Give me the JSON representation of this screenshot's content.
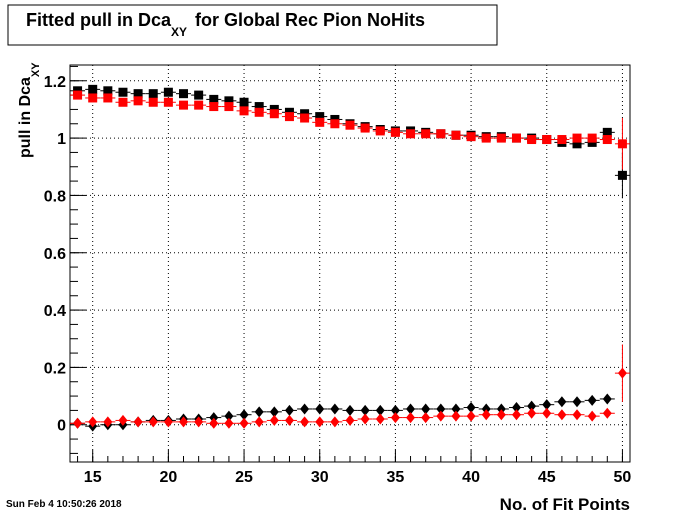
{
  "chart_data": {
    "type": "scatter",
    "title": "Fitted pull in Dca",
    "title_subscript": "XY",
    "title_suffix": "for Global Rec Pion NoHits",
    "y_label": "pull in Dca",
    "y_label_subscript": "XY",
    "x_label": "No. of Fit Points",
    "timestamp": "Sun Feb  4 10:50:26 2018",
    "x": [
      14,
      15,
      16,
      17,
      18,
      19,
      20,
      21,
      22,
      23,
      24,
      25,
      26,
      27,
      28,
      29,
      30,
      31,
      32,
      33,
      34,
      35,
      36,
      37,
      38,
      39,
      40,
      41,
      42,
      43,
      44,
      45,
      46,
      47,
      48,
      49,
      50
    ],
    "series": [
      {
        "color": "#000000",
        "marker": "square",
        "values": [
          1.165,
          1.17,
          1.165,
          1.16,
          1.155,
          1.155,
          1.16,
          1.155,
          1.15,
          1.135,
          1.13,
          1.125,
          1.11,
          1.1,
          1.09,
          1.085,
          1.075,
          1.065,
          1.05,
          1.04,
          1.03,
          1.025,
          1.025,
          1.02,
          1.015,
          1.01,
          1.01,
          1.005,
          1.005,
          1.0,
          1.0,
          0.995,
          0.985,
          0.98,
          0.985,
          1.02,
          0.87
        ],
        "errors": [
          0.01,
          0.01,
          0.01,
          0.01,
          0.01,
          0.01,
          0.01,
          0.01,
          0.01,
          0.01,
          0.01,
          0.01,
          0.01,
          0.01,
          0.01,
          0.01,
          0.01,
          0.01,
          0.01,
          0.01,
          0.01,
          0.01,
          0.01,
          0.01,
          0.01,
          0.01,
          0.01,
          0.01,
          0.01,
          0.01,
          0.01,
          0.01,
          0.01,
          0.01,
          0.01,
          0.015,
          0.08
        ]
      },
      {
        "color": "#ff0000",
        "marker": "square",
        "values": [
          1.15,
          1.14,
          1.14,
          1.125,
          1.13,
          1.125,
          1.125,
          1.115,
          1.115,
          1.11,
          1.11,
          1.095,
          1.09,
          1.085,
          1.075,
          1.07,
          1.055,
          1.05,
          1.045,
          1.035,
          1.025,
          1.02,
          1.015,
          1.015,
          1.015,
          1.01,
          1.005,
          1.0,
          1.0,
          1.0,
          0.995,
          0.995,
          0.995,
          1.0,
          1.0,
          0.995,
          0.98
        ],
        "errors": [
          0.01,
          0.01,
          0.01,
          0.01,
          0.01,
          0.01,
          0.01,
          0.01,
          0.01,
          0.01,
          0.01,
          0.01,
          0.01,
          0.01,
          0.01,
          0.01,
          0.01,
          0.01,
          0.01,
          0.01,
          0.01,
          0.01,
          0.01,
          0.01,
          0.01,
          0.01,
          0.01,
          0.01,
          0.01,
          0.01,
          0.01,
          0.01,
          0.01,
          0.01,
          0.01,
          0.015,
          0.09
        ]
      },
      {
        "color": "#000000",
        "marker": "diamond",
        "values": [
          0.005,
          -0.005,
          0,
          0,
          0.01,
          0.015,
          0.015,
          0.02,
          0.02,
          0.025,
          0.03,
          0.035,
          0.045,
          0.045,
          0.05,
          0.055,
          0.055,
          0.055,
          0.05,
          0.05,
          0.05,
          0.05,
          0.055,
          0.055,
          0.055,
          0.055,
          0.06,
          0.055,
          0.055,
          0.06,
          0.065,
          0.07,
          0.08,
          0.08,
          0.085,
          0.09,
          null
        ],
        "errors": [
          0.01,
          0.01,
          0.01,
          0.01,
          0.01,
          0.01,
          0.01,
          0.01,
          0.01,
          0.01,
          0.01,
          0.01,
          0.01,
          0.01,
          0.01,
          0.01,
          0.01,
          0.01,
          0.01,
          0.01,
          0.01,
          0.01,
          0.01,
          0.01,
          0.01,
          0.01,
          0.01,
          0.01,
          0.01,
          0.01,
          0.01,
          0.01,
          0.01,
          0.01,
          0.01,
          0.015,
          null
        ]
      },
      {
        "color": "#ff0000",
        "marker": "diamond",
        "values": [
          0.005,
          0.01,
          0.01,
          0.015,
          0.01,
          0.01,
          0.01,
          0.01,
          0.01,
          0.005,
          0.005,
          0.005,
          0.01,
          0.015,
          0.015,
          0.01,
          0.01,
          0.01,
          0.015,
          0.02,
          0.02,
          0.025,
          0.025,
          0.025,
          0.03,
          0.03,
          0.03,
          0.035,
          0.035,
          0.035,
          0.04,
          0.04,
          0.035,
          0.035,
          0.03,
          0.04,
          0.18
        ],
        "errors": [
          0.01,
          0.01,
          0.01,
          0.01,
          0.01,
          0.01,
          0.01,
          0.01,
          0.01,
          0.01,
          0.01,
          0.01,
          0.01,
          0.01,
          0.01,
          0.01,
          0.01,
          0.01,
          0.01,
          0.01,
          0.01,
          0.01,
          0.01,
          0.01,
          0.01,
          0.01,
          0.01,
          0.01,
          0.01,
          0.01,
          0.01,
          0.01,
          0.01,
          0.01,
          0.01,
          0.015,
          0.1
        ]
      }
    ],
    "xlim": [
      13.5,
      50.5
    ],
    "ylim": [
      -0.13,
      1.255
    ],
    "xticks": [
      15,
      20,
      25,
      30,
      35,
      40,
      45,
      50
    ],
    "yticks": [
      0,
      0.2,
      0.4,
      0.6,
      0.8,
      1,
      1.2
    ],
    "grid": true
  }
}
